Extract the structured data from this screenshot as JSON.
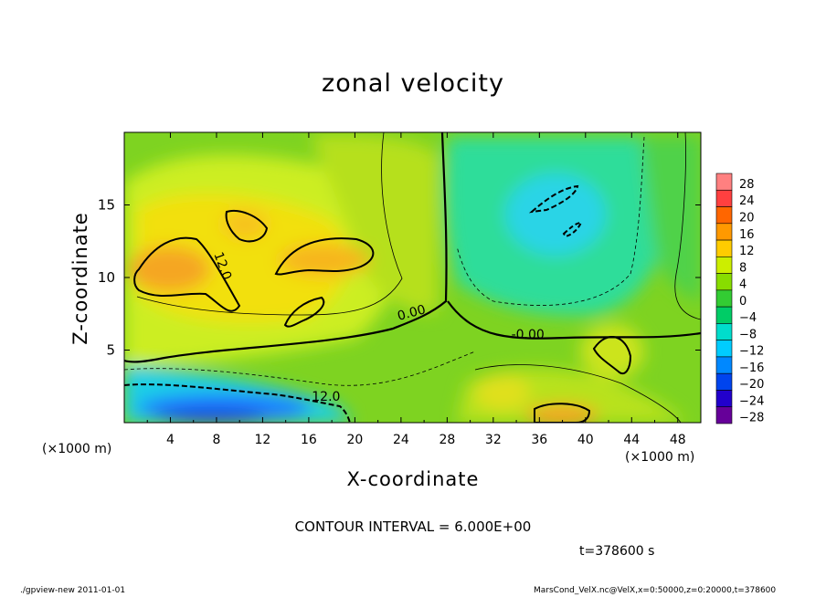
{
  "title": "zonal velocity",
  "footer": {
    "left": "./gpview-new   2011-01-01",
    "right": "MarsCond_VelX.nc@VelX,x=0:50000,z=0:20000,t=378600"
  },
  "annotations": {
    "contour_interval": "CONTOUR INTERVAL = 6.000E+00",
    "time": "t=378600 s",
    "x_unit_left": "(×1000 m)",
    "x_unit_right": "(×1000 m)"
  },
  "chart_data": {
    "type": "heatmap",
    "title": "zonal velocity",
    "xlabel": "X-coordinate",
    "ylabel": "Z-coordinate",
    "xlim": [
      0,
      50
    ],
    "ylim": [
      0,
      20
    ],
    "x_ticks": [
      "4",
      "8",
      "12",
      "16",
      "20",
      "24",
      "28",
      "32",
      "36",
      "40",
      "44",
      "48"
    ],
    "y_ticks": [
      "5",
      "10",
      "15"
    ],
    "contour_labels": [
      "12.0",
      "0.00",
      "-0.00",
      "12.0"
    ],
    "colorbar": {
      "levels": [
        28,
        24,
        20,
        16,
        12,
        8,
        4,
        0,
        -4,
        -8,
        -12,
        -16,
        -20,
        -24,
        -28
      ],
      "colors": [
        "#ff8080",
        "#ff4040",
        "#ff6600",
        "#ff9900",
        "#ffcc00",
        "#ccee00",
        "#88dd00",
        "#33cc33",
        "#00cc66",
        "#00ddcc",
        "#00ccff",
        "#0088ff",
        "#0044ee",
        "#2200cc",
        "#660099"
      ]
    },
    "field_centers": [
      {
        "x": 4,
        "z": 10.5,
        "value": 16
      },
      {
        "x": 16,
        "z": 11,
        "value": 14
      },
      {
        "x": 10,
        "z": 14,
        "value": 13
      },
      {
        "x": 10,
        "z": 1,
        "value": -18
      },
      {
        "x": 36,
        "z": 15,
        "value": -10
      },
      {
        "x": 39,
        "z": 1.5,
        "value": 16
      },
      {
        "x": 42,
        "z": 5,
        "value": 10
      }
    ]
  }
}
